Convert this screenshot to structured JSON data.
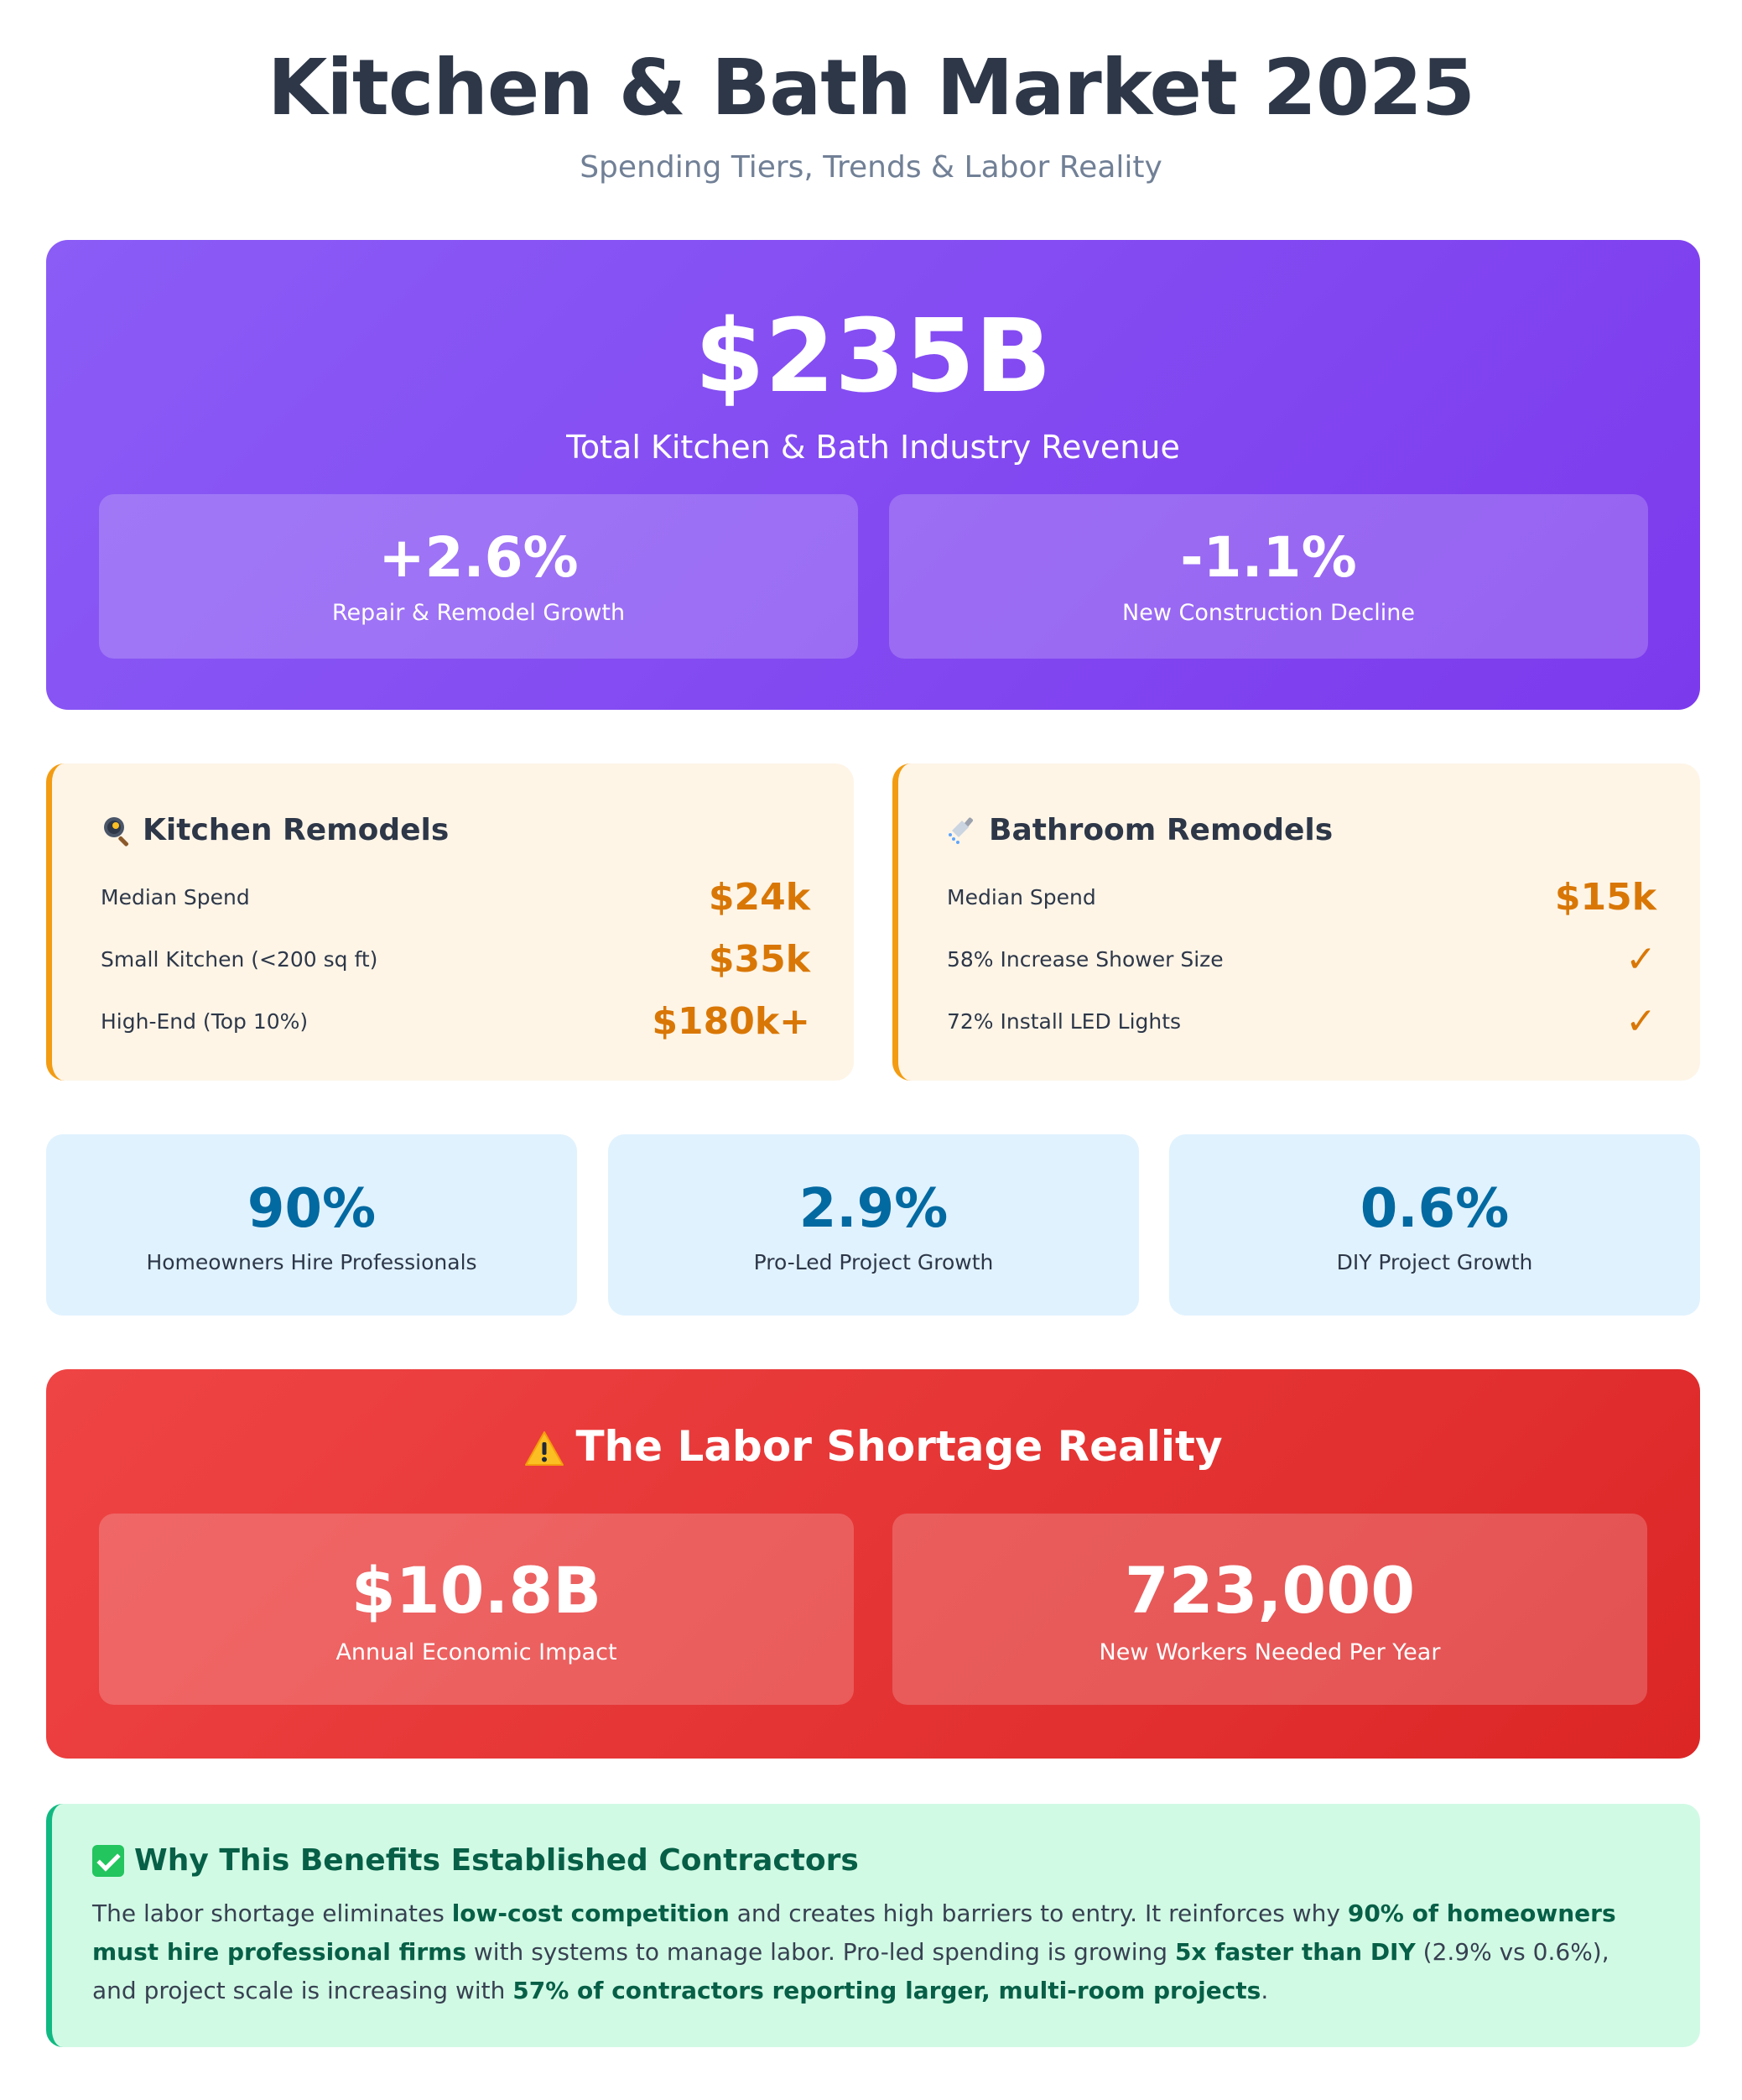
{
  "header": {
    "title": "Kitchen & Bath Market 2025",
    "subtitle": "Spending Tiers, Trends & Labor Reality"
  },
  "hero": {
    "value": "$235B",
    "label": "Total Kitchen & Bath Industry Revenue",
    "stats": [
      {
        "value": "+2.6%",
        "label": "Repair & Remodel Growth"
      },
      {
        "value": "-1.1%",
        "label": "New Construction Decline"
      }
    ]
  },
  "kitchen": {
    "icon": "frying-pan-icon",
    "title": "Kitchen Remodels",
    "rows": [
      {
        "label": "Median Spend",
        "value": "$24k"
      },
      {
        "label": "Small Kitchen (<200 sq ft)",
        "value": "$35k"
      },
      {
        "label": "High-End (Top 10%)",
        "value": "$180k+"
      }
    ]
  },
  "bathroom": {
    "icon": "shower-icon",
    "title": "Bathroom Remodels",
    "rows": [
      {
        "label": "Median Spend",
        "value": "$15k"
      },
      {
        "label": "58% Increase Shower Size",
        "value": "✓"
      },
      {
        "label": "72% Install LED Lights",
        "value": "✓"
      }
    ]
  },
  "stats": [
    {
      "value": "90%",
      "label": "Homeowners Hire Professionals"
    },
    {
      "value": "2.9%",
      "label": "Pro-Led Project Growth"
    },
    {
      "value": "0.6%",
      "label": "DIY Project Growth"
    }
  ],
  "labor": {
    "icon": "warning-icon",
    "title": "The Labor Shortage Reality",
    "boxes": [
      {
        "value": "$10.8B",
        "label": "Annual Economic Impact"
      },
      {
        "value": "723,000",
        "label": "New Workers Needed Per Year"
      }
    ]
  },
  "benefit": {
    "icon": "check-box-icon",
    "title": "Why This Benefits Established Contractors",
    "segments": [
      {
        "text": "The labor shortage eliminates ",
        "bold": false
      },
      {
        "text": "low-cost competition",
        "bold": true
      },
      {
        "text": " and creates high barriers to entry. It reinforces why ",
        "bold": false
      },
      {
        "text": "90% of homeowners must hire professional firms",
        "bold": true
      },
      {
        "text": " with systems to manage labor. Pro-led spending is growing ",
        "bold": false
      },
      {
        "text": "5x faster than DIY",
        "bold": true
      },
      {
        "text": " (2.9% vs 0.6%), and project scale is increasing with ",
        "bold": false
      },
      {
        "text": "57% of contractors reporting larger, multi-room projects",
        "bold": true
      },
      {
        "text": ".",
        "bold": false
      }
    ]
  },
  "colors": {
    "hero": "#8b5cf6",
    "tier_accent": "#f39c12",
    "tier_value": "#d97706",
    "stat_value": "#0369a1",
    "labor": "#ef4444",
    "benefit_accent": "#10b981"
  }
}
